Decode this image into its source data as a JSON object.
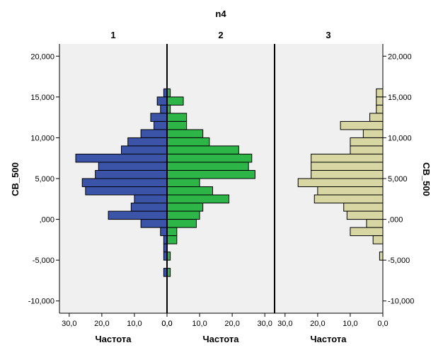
{
  "chart_data": {
    "type": "bar",
    "orientation": "population-pyramid",
    "title": "n4",
    "panel_labels": [
      "1",
      "2",
      "3"
    ],
    "ylabel": "CB_500",
    "xlabel": "Частота",
    "ylim": [
      -11500,
      21500
    ],
    "xlim": [
      0,
      33
    ],
    "bin_width": 1000,
    "y_ticks": [
      20000,
      15000,
      10000,
      5000,
      0,
      -5000,
      -10000
    ],
    "y_tick_labels": [
      "20,000",
      "15,000",
      "10,000",
      "5,000",
      ",000",
      "-5,000",
      "-10,000"
    ],
    "x_tick_labels": [
      [
        "30,0",
        "20,0",
        "10,0",
        "0,0"
      ],
      [
        "0,0",
        "10,0",
        "20,0",
        "30,0"
      ],
      [
        "30,0",
        "20,0",
        "10,0",
        "0,0"
      ]
    ],
    "x_ticks": [
      30,
      20,
      10,
      0
    ],
    "series": [
      {
        "panel": "1",
        "color": "#3B54A8",
        "direction": "left",
        "bins": [
          {
            "y": 15000,
            "count": 1
          },
          {
            "y": 14000,
            "count": 3
          },
          {
            "y": 13000,
            "count": 2
          },
          {
            "y": 12000,
            "count": 5
          },
          {
            "y": 11000,
            "count": 4
          },
          {
            "y": 10000,
            "count": 8
          },
          {
            "y": 9000,
            "count": 12
          },
          {
            "y": 8000,
            "count": 14
          },
          {
            "y": 7000,
            "count": 28
          },
          {
            "y": 6000,
            "count": 21
          },
          {
            "y": 5000,
            "count": 22
          },
          {
            "y": 4000,
            "count": 26
          },
          {
            "y": 3000,
            "count": 25
          },
          {
            "y": 2000,
            "count": 10
          },
          {
            "y": 1000,
            "count": 11
          },
          {
            "y": 0,
            "count": 18
          },
          {
            "y": -1000,
            "count": 8
          },
          {
            "y": -2000,
            "count": 2
          },
          {
            "y": -3000,
            "count": 1
          },
          {
            "y": -4000,
            "count": 1
          },
          {
            "y": -5000,
            "count": 1
          },
          {
            "y": -7000,
            "count": 1
          }
        ]
      },
      {
        "panel": "2",
        "color": "#2DB547",
        "direction": "right",
        "bins": [
          {
            "y": 15000,
            "count": 1
          },
          {
            "y": 14000,
            "count": 5
          },
          {
            "y": 13000,
            "count": 1
          },
          {
            "y": 12000,
            "count": 6
          },
          {
            "y": 11000,
            "count": 6
          },
          {
            "y": 10000,
            "count": 11
          },
          {
            "y": 9000,
            "count": 13
          },
          {
            "y": 8000,
            "count": 22
          },
          {
            "y": 7000,
            "count": 26
          },
          {
            "y": 6000,
            "count": 25
          },
          {
            "y": 5000,
            "count": 27
          },
          {
            "y": 4000,
            "count": 10
          },
          {
            "y": 3000,
            "count": 14
          },
          {
            "y": 2000,
            "count": 19
          },
          {
            "y": 1000,
            "count": 11
          },
          {
            "y": 0,
            "count": 10
          },
          {
            "y": -1000,
            "count": 9
          },
          {
            "y": -2000,
            "count": 3
          },
          {
            "y": -3000,
            "count": 3
          },
          {
            "y": -5000,
            "count": 1
          },
          {
            "y": -7000,
            "count": 1
          }
        ]
      },
      {
        "panel": "3",
        "color": "#D8D6A3",
        "direction": "left",
        "bins": [
          {
            "y": 15000,
            "count": 2
          },
          {
            "y": 14000,
            "count": 2
          },
          {
            "y": 13000,
            "count": 2
          },
          {
            "y": 12000,
            "count": 4
          },
          {
            "y": 11000,
            "count": 13
          },
          {
            "y": 10000,
            "count": 6
          },
          {
            "y": 9000,
            "count": 10
          },
          {
            "y": 8000,
            "count": 10
          },
          {
            "y": 7000,
            "count": 22
          },
          {
            "y": 6000,
            "count": 22
          },
          {
            "y": 5000,
            "count": 22
          },
          {
            "y": 4000,
            "count": 26
          },
          {
            "y": 3000,
            "count": 20
          },
          {
            "y": 2000,
            "count": 21
          },
          {
            "y": 1000,
            "count": 12
          },
          {
            "y": 0,
            "count": 11
          },
          {
            "y": -1000,
            "count": 5
          },
          {
            "y": -2000,
            "count": 10
          },
          {
            "y": -3000,
            "count": 3
          },
          {
            "y": -5000,
            "count": 1
          }
        ]
      }
    ],
    "colors": {
      "plot_background": "#F0F0F0",
      "bar_stroke": "#000000",
      "axis": "#000000"
    },
    "grid": false,
    "legend": "none"
  }
}
